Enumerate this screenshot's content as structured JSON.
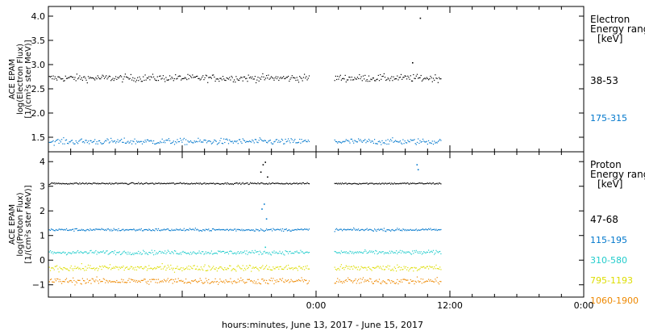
{
  "chart_data": {
    "type": "scatter",
    "xlabel": "hours:minutes, June 13, 2017 - June 15, 2017",
    "x_range_hours": [
      -24,
      24
    ],
    "x_ticks": [
      {
        "hours": 0,
        "label": "0:00"
      },
      {
        "hours": 12,
        "label": "12:00"
      },
      {
        "hours": 24,
        "label": "0:00"
      }
    ],
    "data_gap_hours": [
      -0.6,
      1.6
    ],
    "data_end_hours": 11.2,
    "panels": [
      {
        "id": "electron",
        "ylabel_lines": [
          "ACE EPAM",
          "log(Electron Flux)",
          "[1/(cm²s ster MeV)]"
        ],
        "ylim": [
          1.2,
          4.2
        ],
        "y_ticks": [
          {
            "value": 1.5,
            "label": "1.5"
          },
          {
            "value": 2.0,
            "label": "2.0"
          },
          {
            "value": 2.5,
            "label": "2.5"
          },
          {
            "value": 3.0,
            "label": "3.0"
          },
          {
            "value": 3.5,
            "label": "3.5"
          },
          {
            "value": 4.0,
            "label": "4.0"
          }
        ],
        "legend_title": [
          "Electron",
          "Energy range",
          "[keV]"
        ],
        "series": [
          {
            "name": "38-53",
            "color": "#000000",
            "base": 2.73,
            "noise": 0.07
          },
          {
            "name": "175-315",
            "color": "#0077cc",
            "base": 1.42,
            "noise": 0.06
          }
        ],
        "spikes": [
          {
            "x": 9.3,
            "y": 3.97,
            "color": "#000000"
          },
          {
            "x": 8.6,
            "y": 3.05,
            "color": "#000000"
          }
        ]
      },
      {
        "id": "proton",
        "ylabel_lines": [
          "ACE EPAM",
          "log(Proton Flux)",
          "[1/(cm²s ster MeV)]"
        ],
        "ylim": [
          -1.5,
          4.4
        ],
        "y_ticks": [
          {
            "value": -1,
            "label": "−1"
          },
          {
            "value": 0,
            "label": "0"
          },
          {
            "value": 1,
            "label": "1"
          },
          {
            "value": 2,
            "label": "2"
          },
          {
            "value": 3,
            "label": "3"
          },
          {
            "value": 4,
            "label": "4"
          }
        ],
        "legend_title": [
          "Proton",
          "Energy range",
          "[keV]"
        ],
        "series": [
          {
            "name": "47-68",
            "color": "#000000",
            "base": 3.13,
            "noise": 0.03
          },
          {
            "name": "115-195",
            "color": "#0077cc",
            "base": 1.25,
            "noise": 0.05
          },
          {
            "name": "310-580",
            "color": "#22cccc",
            "base": 0.33,
            "noise": 0.08
          },
          {
            "name": "795-1193",
            "color": "#dddd00",
            "base": -0.3,
            "noise": 0.12
          },
          {
            "name": "1060-1900",
            "color": "#ee8800",
            "base": -0.83,
            "noise": 0.12
          }
        ],
        "spikes": [
          {
            "x": -5.0,
            "y": 3.6,
            "color": "#000000"
          },
          {
            "x": -4.8,
            "y": 3.9,
            "color": "#000000"
          },
          {
            "x": -4.6,
            "y": 4.0,
            "color": "#000000"
          },
          {
            "x": -4.4,
            "y": 3.4,
            "color": "#000000"
          },
          {
            "x": -4.9,
            "y": 2.1,
            "color": "#0077cc"
          },
          {
            "x": -4.7,
            "y": 2.3,
            "color": "#0077cc"
          },
          {
            "x": -4.5,
            "y": 1.7,
            "color": "#0077cc"
          },
          {
            "x": -4.6,
            "y": 0.55,
            "color": "#22cccc"
          },
          {
            "x": 9.0,
            "y": 3.9,
            "color": "#0077cc"
          },
          {
            "x": 9.1,
            "y": 3.7,
            "color": "#0077cc"
          }
        ]
      }
    ]
  }
}
